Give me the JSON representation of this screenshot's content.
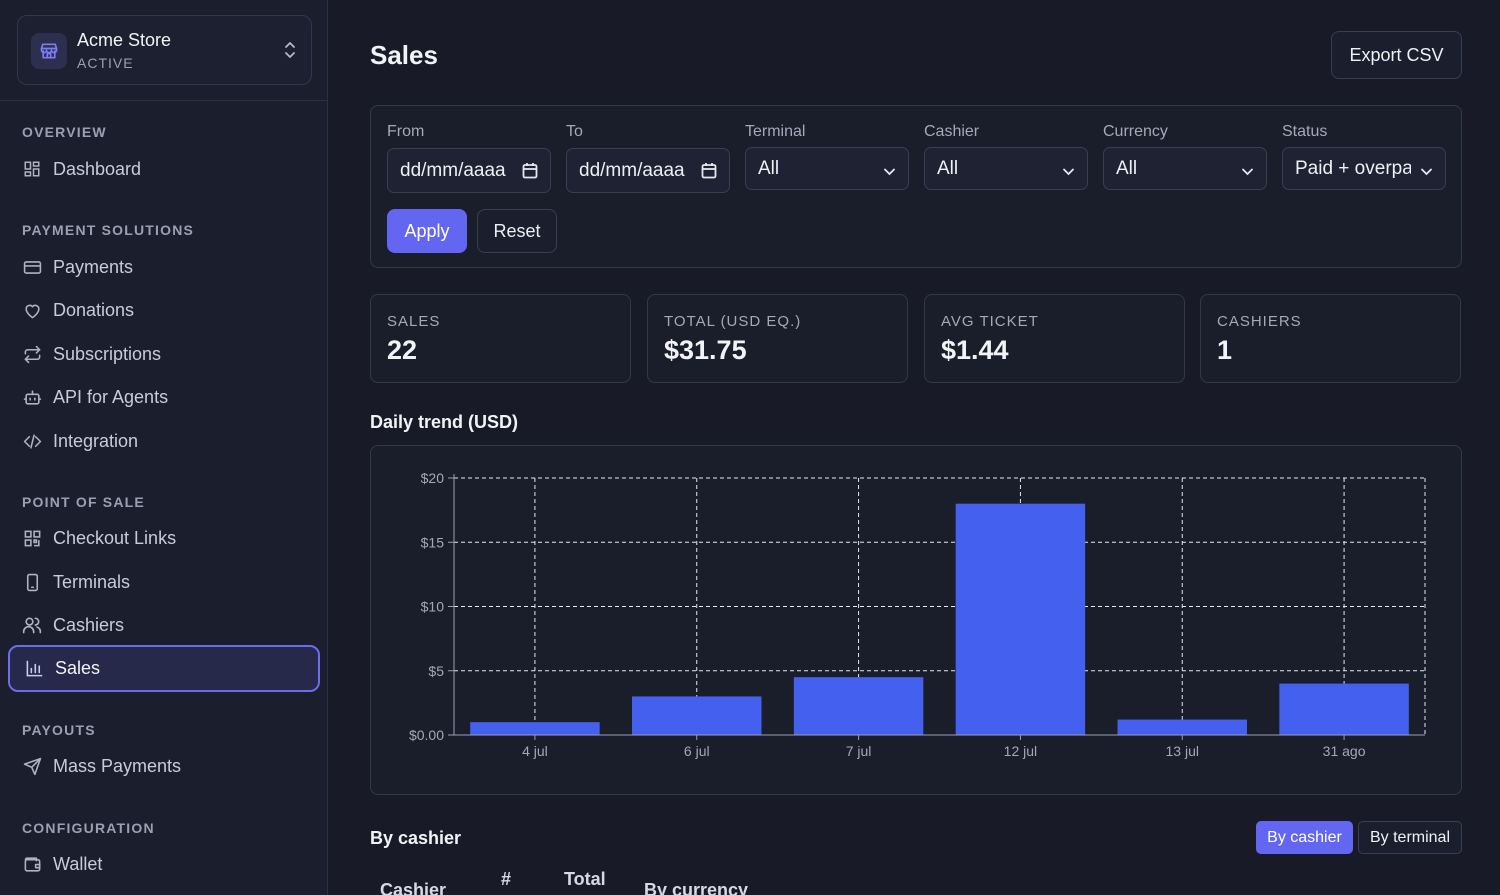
{
  "store": {
    "name": "Acme Store",
    "status": "ACTIVE"
  },
  "sidebar": {
    "sections": [
      {
        "title": "OVERVIEW",
        "items": [
          {
            "label": "Dashboard",
            "icon": "grid-icon"
          }
        ]
      },
      {
        "title": "PAYMENT SOLUTIONS",
        "items": [
          {
            "label": "Payments",
            "icon": "credit-card-icon"
          },
          {
            "label": "Donations",
            "icon": "heart-icon"
          },
          {
            "label": "Subscriptions",
            "icon": "repeat-icon"
          },
          {
            "label": "API for Agents",
            "icon": "bot-icon"
          },
          {
            "label": "Integration",
            "icon": "code-icon"
          }
        ]
      },
      {
        "title": "POINT OF SALE",
        "items": [
          {
            "label": "Checkout Links",
            "icon": "qr-code-icon"
          },
          {
            "label": "Terminals",
            "icon": "tablet-icon"
          },
          {
            "label": "Cashiers",
            "icon": "users-icon"
          },
          {
            "label": "Sales",
            "icon": "bar-chart-icon",
            "active": true
          }
        ]
      },
      {
        "title": "PAYOUTS",
        "items": [
          {
            "label": "Mass Payments",
            "icon": "send-icon"
          }
        ]
      },
      {
        "title": "CONFIGURATION",
        "items": [
          {
            "label": "Wallet",
            "icon": "wallet-icon"
          }
        ]
      }
    ]
  },
  "header": {
    "title": "Sales",
    "export_label": "Export CSV"
  },
  "filters": {
    "from": {
      "label": "From",
      "value": "dd/mm/aaaa"
    },
    "to": {
      "label": "To",
      "value": "dd/mm/aaaa"
    },
    "terminal": {
      "label": "Terminal",
      "value": "All"
    },
    "cashier": {
      "label": "Cashier",
      "value": "All"
    },
    "currency": {
      "label": "Currency",
      "value": "All"
    },
    "status": {
      "label": "Status",
      "value": "Paid + overpa"
    },
    "apply_label": "Apply",
    "reset_label": "Reset"
  },
  "stats": [
    {
      "label": "SALES",
      "value": "22"
    },
    {
      "label": "TOTAL (USD EQ.)",
      "value": "$31.75"
    },
    {
      "label": "AVG TICKET",
      "value": "$1.44"
    },
    {
      "label": "CASHIERS",
      "value": "1"
    }
  ],
  "chart_title": "Daily trend (USD)",
  "chart_data": {
    "type": "bar",
    "title": "Daily trend (USD)",
    "categories": [
      "4 jul",
      "6 jul",
      "7 jul",
      "12 jul",
      "13 jul",
      "31 ago"
    ],
    "values": [
      1.0,
      3.0,
      4.5,
      18.0,
      1.2,
      4.0
    ],
    "ylim": [
      0,
      20
    ],
    "y_ticks": [
      "$0.00",
      "$5",
      "$10",
      "$15",
      "$20"
    ],
    "y_tick_values": [
      0,
      5,
      10,
      15,
      20
    ],
    "grid": true,
    "bar_color": "#4361ee"
  },
  "breakdown": {
    "title": "By cashier",
    "tabs": [
      "By cashier",
      "By terminal"
    ],
    "columns": [
      "Cashier",
      "#",
      "Total",
      "By currency"
    ]
  }
}
